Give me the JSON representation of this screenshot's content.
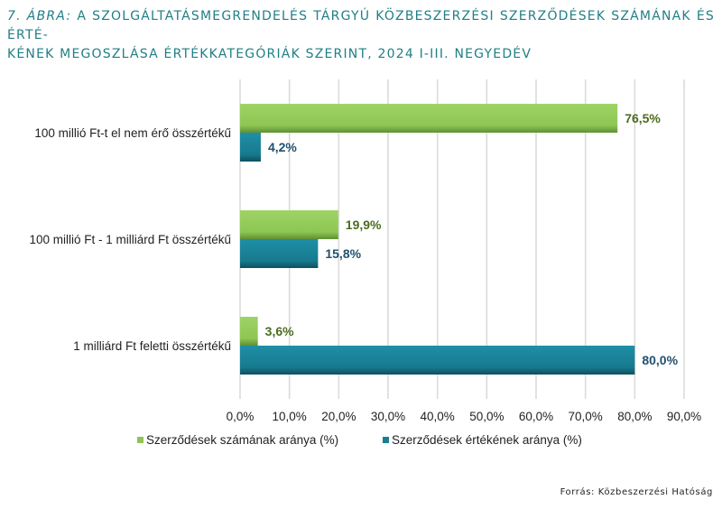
{
  "title": {
    "figure_label": "7. ÁBRA:",
    "line1": "A SZOLGÁLTATÁSMEGRENDELÉS TÁRGYÚ KÖZBESZERZÉSI SZERZŐDÉSEK SZÁMÁNAK ÉS ÉRTÉ-",
    "line2": "KÉNEK MEGOSZLÁSA ÉRTÉKKATEGÓRIÁK SZERINT, 2024 I-III. NEGYEDÉV"
  },
  "source": "Forrás: Közbeszerzési Hatóság",
  "colors": {
    "green": "#8dc653",
    "green_label": "#4d6b1f",
    "teal": "#1a7e93",
    "teal_label": "#21506f",
    "grid": "#d9d9d9"
  },
  "chart_data": {
    "type": "bar",
    "orientation": "horizontal",
    "categories": [
      "100 millió Ft-t el nem érő összértékű",
      "100 millió Ft - 1 milliárd Ft összértékű",
      "1 milliárd Ft feletti összértékű"
    ],
    "series": [
      {
        "name": "Szerződések számának aránya (%)",
        "values": [
          76.5,
          19.9,
          3.6
        ],
        "labels": [
          "76,5%",
          "19,9%",
          "3,6%"
        ]
      },
      {
        "name": "Szerződések értékének aránya (%)",
        "values": [
          4.2,
          15.8,
          80.0
        ],
        "labels": [
          "4,2%",
          "15,8%",
          "80,0%"
        ]
      }
    ],
    "xlim": [
      0,
      90
    ],
    "xticks": [
      0,
      10,
      20,
      30,
      40,
      50,
      60,
      70,
      80,
      90
    ],
    "xtick_labels": [
      "0,0%",
      "10,0%",
      "20,0%",
      "30,0%",
      "40,0%",
      "50,0%",
      "60,0%",
      "70,0%",
      "80,0%",
      "90,0%"
    ],
    "grid": true,
    "legend_position": "bottom"
  }
}
